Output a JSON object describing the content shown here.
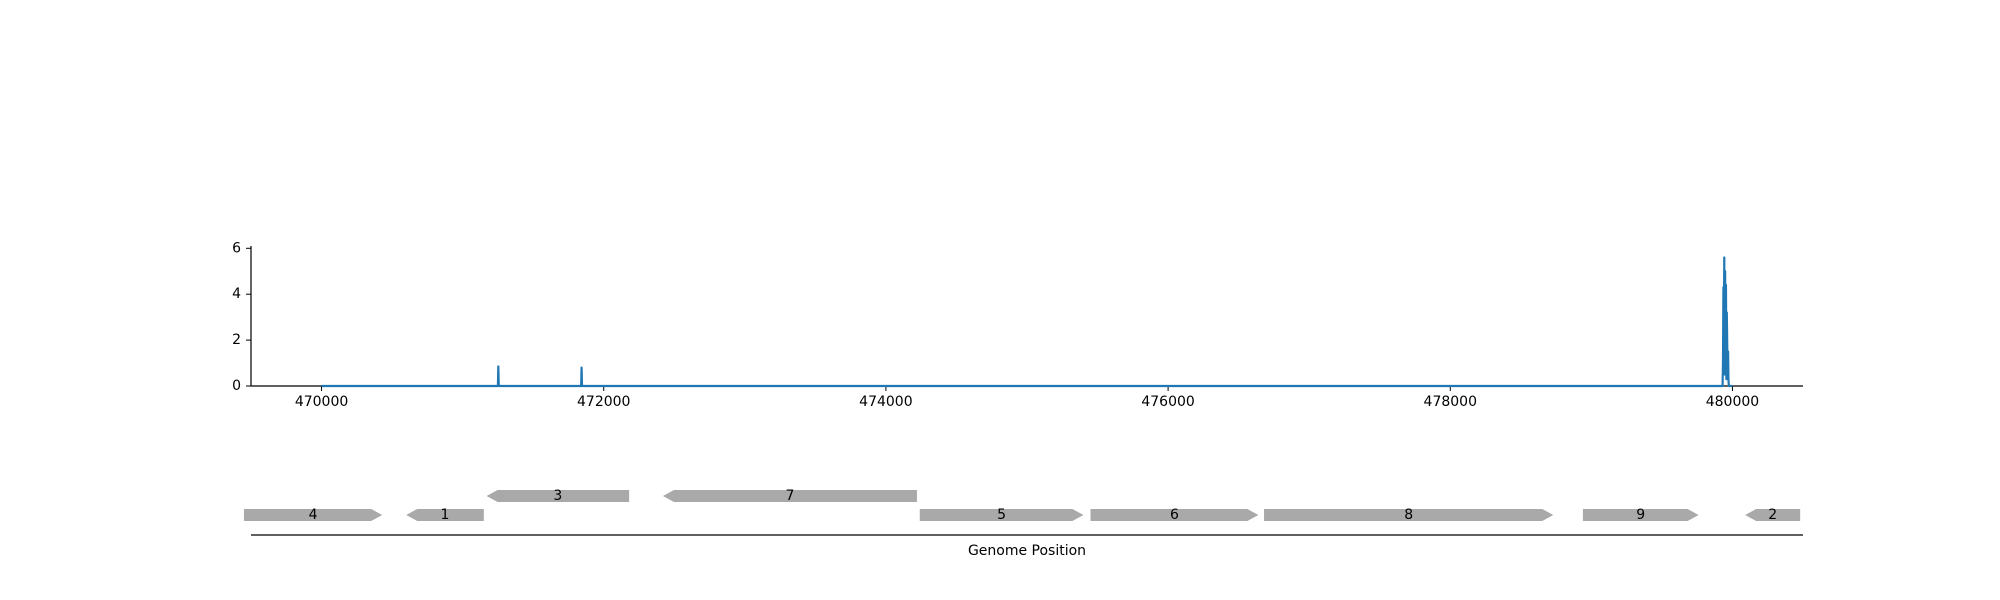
{
  "chart_data": [
    {
      "type": "line",
      "title": "",
      "xlabel": "",
      "ylabel": "",
      "xlim": [
        469500,
        480500
      ],
      "ylim": [
        0,
        6.1
      ],
      "x_ticks": [
        470000,
        472000,
        474000,
        476000,
        478000,
        480000
      ],
      "x_tick_labels": [
        "470000",
        "472000",
        "474000",
        "476000",
        "478000",
        "480000"
      ],
      "y_ticks": [
        0,
        2,
        4,
        6
      ],
      "y_tick_labels": [
        "0",
        "2",
        "4",
        "6"
      ],
      "color": "#1f77b4",
      "grid": false,
      "series": [
        {
          "x": [
            470000,
            471250,
            471253,
            471256,
            471840,
            471843,
            471846,
            479930,
            479933,
            479936,
            479939,
            479942,
            479945,
            479948,
            479951,
            479954,
            479957,
            479960,
            479963,
            479966,
            479969,
            479972,
            479975,
            480000
          ],
          "y": [
            0,
            0,
            0.85,
            0,
            0,
            0.8,
            0,
            0,
            1.1,
            4.3,
            2.2,
            5.6,
            0.5,
            5.0,
            1.2,
            4.4,
            0.3,
            3.2,
            1.8,
            0.4,
            1.5,
            0.2,
            0,
            0
          ]
        }
      ]
    },
    {
      "type": "gene-map",
      "xlabel": "Genome Position",
      "gene_color": "#a9a9a9",
      "genes": [
        {
          "label": "4",
          "start": 469450,
          "end": 470430,
          "strand": "+",
          "row": 0
        },
        {
          "label": "1",
          "start": 470600,
          "end": 471150,
          "strand": "-",
          "row": 0
        },
        {
          "label": "3",
          "start": 471170,
          "end": 472180,
          "strand": "-",
          "row": 1
        },
        {
          "label": "7",
          "start": 472420,
          "end": 474220,
          "strand": "-",
          "row": 1
        },
        {
          "label": "5",
          "start": 474240,
          "end": 475400,
          "strand": "+",
          "row": 0
        },
        {
          "label": "6",
          "start": 475450,
          "end": 476640,
          "strand": "+",
          "row": 0
        },
        {
          "label": "8",
          "start": 476680,
          "end": 478730,
          "strand": "+",
          "row": 0
        },
        {
          "label": "9",
          "start": 478940,
          "end": 479760,
          "strand": "+",
          "row": 0
        },
        {
          "label": "2",
          "start": 480090,
          "end": 480480,
          "strand": "-",
          "row": 0
        }
      ]
    }
  ]
}
